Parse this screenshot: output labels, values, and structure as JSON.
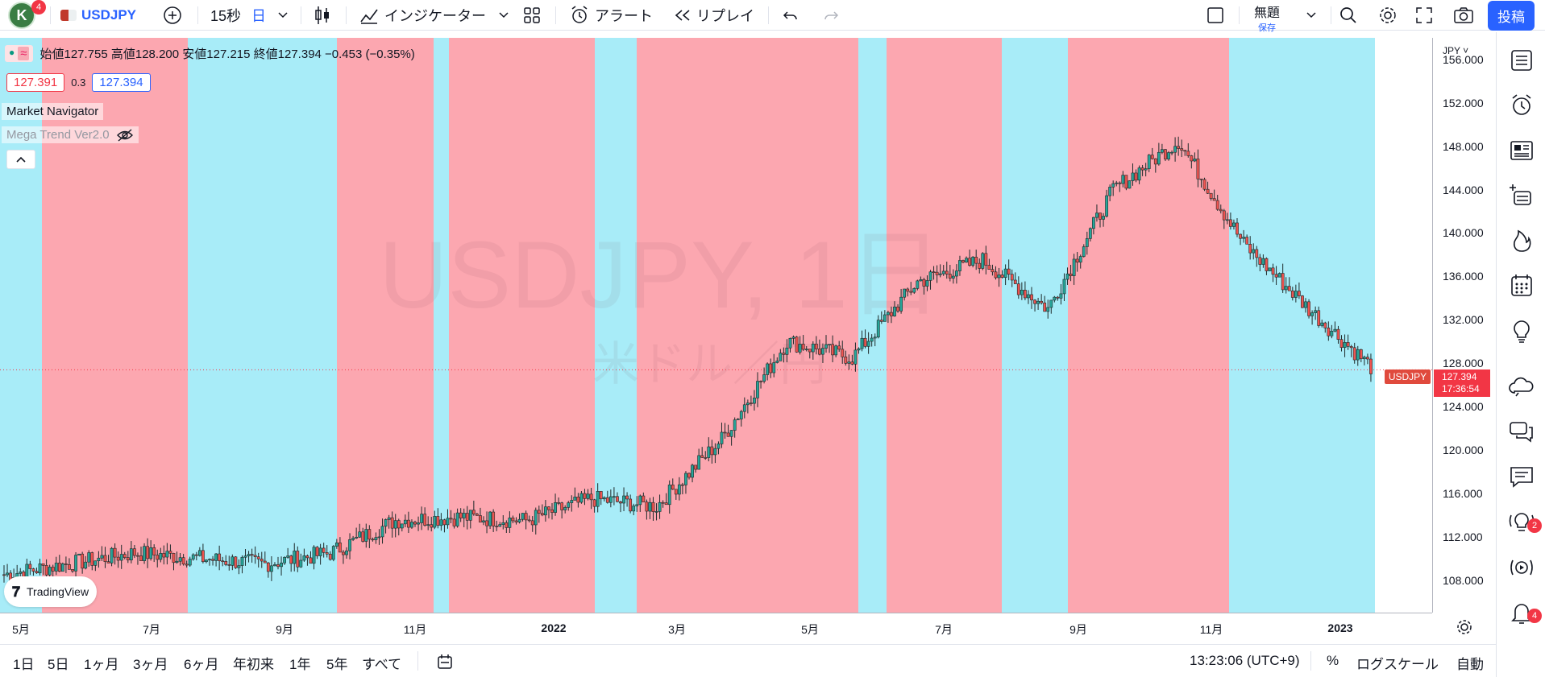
{
  "header": {
    "avatar_letter": "K",
    "avatar_badge": "4",
    "symbol": "USDJPY",
    "interval_seconds": "15秒",
    "interval_day": "日",
    "indicators_label": "インジケーター",
    "alert_label": "アラート",
    "replay_label": "リプレイ",
    "layout_title": "無題",
    "layout_sub": "保存",
    "post_label": "投稿"
  },
  "legend": {
    "ohlc": "始値127.755  高値128.200  安値127.215  終値127.394  −0.453 (−0.35%)",
    "bid": "127.391",
    "spread": "0.3",
    "ask": "127.394",
    "indicator_1": "Market Navigator",
    "indicator_2": "Mega Trend Ver2.0"
  },
  "watermark": {
    "main": "USDJPY, 1日",
    "sub": "米ドル／円"
  },
  "price_tag": {
    "symbol": "USDJPY",
    "price": "127.394",
    "countdown": "17:36:54"
  },
  "y_axis": {
    "currency": "JPY",
    "labels": [
      "156.000",
      "152.000",
      "148.000",
      "144.000",
      "140.000",
      "136.000",
      "132.000",
      "128.000",
      "124.000",
      "120.000",
      "116.000",
      "112.000",
      "108.000"
    ]
  },
  "x_axis": {
    "labels": [
      "5月",
      "7月",
      "9月",
      "11月",
      "2022",
      "3月",
      "5月",
      "7月",
      "9月",
      "11月",
      "2023"
    ]
  },
  "logo": "TradingView",
  "bottom": {
    "ranges": [
      "1日",
      "5日",
      "1ヶ月",
      "3ヶ月",
      "6ヶ月",
      "年初来",
      "1年",
      "5年",
      "すべて"
    ],
    "time": "13:23:06 (UTC+9)",
    "percent": "%",
    "log": "ログスケール",
    "auto": "自動"
  },
  "right_badges": {
    "ideas": "2",
    "notifications": "4"
  },
  "colors": {
    "bull_zone": "#a8ecf8",
    "bear_zone": "#fca7b0",
    "candle_up": "#26a69a",
    "candle_down": "#ef5350",
    "accent": "#2962ff"
  },
  "chart_data": {
    "type": "line",
    "title": "USDJPY, 1日",
    "ylim": [
      105,
      158
    ],
    "x": [
      "2021-04",
      "2021-05",
      "2021-06",
      "2021-07",
      "2021-08",
      "2021-09",
      "2021-10",
      "2021-11",
      "2021-12",
      "2022-01",
      "2022-02",
      "2022-03",
      "2022-04",
      "2022-05",
      "2022-06",
      "2022-07",
      "2022-08",
      "2022-09",
      "2022-10",
      "2022-11",
      "2022-12",
      "2023-01"
    ],
    "series": [
      {
        "name": "USDJPY",
        "values": [
          108.5,
          109.5,
          110.5,
          110.0,
          109.5,
          110.5,
          113.5,
          113.8,
          113.5,
          115.5,
          114.8,
          121.0,
          130.0,
          128.5,
          135.5,
          137.5,
          133.0,
          144.0,
          148.5,
          139.0,
          133.0,
          127.394
        ]
      }
    ]
  }
}
